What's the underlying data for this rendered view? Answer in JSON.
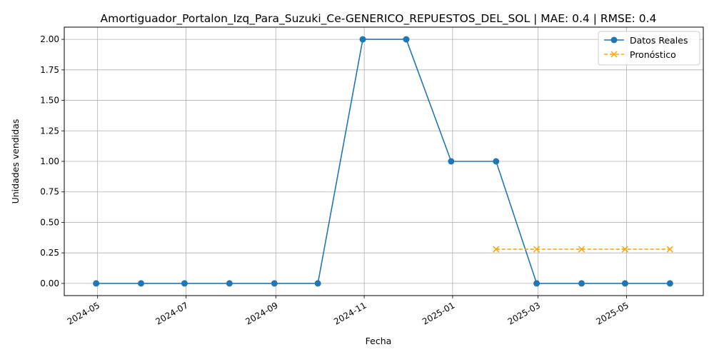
{
  "chart_data": {
    "type": "line",
    "title": "Amortiguador_Portalon_Izq_Para_Suzuki_Ce-GENERICO_REPUESTOS_DEL_SOL | MAE: 0.4 | RMSE: 0.4",
    "xlabel": "Fecha",
    "ylabel": "Unidades vendidas",
    "xlim": [
      "2024-04-08",
      "2025-06-23"
    ],
    "ylim": [
      -0.1,
      2.1
    ],
    "grid": true,
    "legend_position": "top-right",
    "x_ticks": [
      {
        "date": "2024-05-01",
        "label": "2024-05"
      },
      {
        "date": "2024-07-01",
        "label": "2024-07"
      },
      {
        "date": "2024-09-01",
        "label": "2024-09"
      },
      {
        "date": "2024-11-01",
        "label": "2024-11"
      },
      {
        "date": "2025-01-01",
        "label": "2025-01"
      },
      {
        "date": "2025-03-01",
        "label": "2025-03"
      },
      {
        "date": "2025-05-01",
        "label": "2025-05"
      }
    ],
    "y_ticks": [
      {
        "value": 0.0,
        "label": "0.00"
      },
      {
        "value": 0.25,
        "label": "0.25"
      },
      {
        "value": 0.5,
        "label": "0.50"
      },
      {
        "value": 0.75,
        "label": "0.75"
      },
      {
        "value": 1.0,
        "label": "1.00"
      },
      {
        "value": 1.25,
        "label": "1.25"
      },
      {
        "value": 1.5,
        "label": "1.50"
      },
      {
        "value": 1.75,
        "label": "1.75"
      },
      {
        "value": 2.0,
        "label": "2.00"
      }
    ],
    "series": [
      {
        "name": "Datos Reales",
        "color": "#1f77b4",
        "line_style": "solid",
        "marker": "circle",
        "x": [
          "2024-04-30",
          "2024-05-31",
          "2024-06-30",
          "2024-07-31",
          "2024-08-31",
          "2024-09-30",
          "2024-10-31",
          "2024-11-30",
          "2024-12-31",
          "2025-01-31",
          "2025-02-28",
          "2025-03-31",
          "2025-04-30",
          "2025-05-31"
        ],
        "values": [
          0,
          0,
          0,
          0,
          0,
          0,
          2,
          2,
          1,
          1,
          0,
          0,
          0,
          0
        ]
      },
      {
        "name": "Pronóstico",
        "color": "#ffa500",
        "line_style": "dashed",
        "marker": "x",
        "x": [
          "2025-01-31",
          "2025-02-28",
          "2025-03-31",
          "2025-04-30",
          "2025-05-31"
        ],
        "values": [
          0.28,
          0.28,
          0.28,
          0.28,
          0.28
        ]
      }
    ]
  }
}
